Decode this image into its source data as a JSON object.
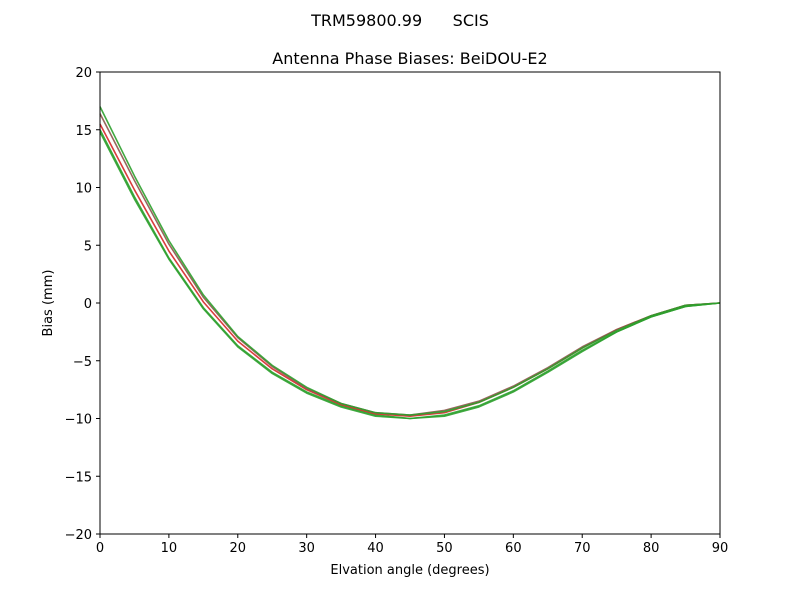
{
  "figure": {
    "suptitle": "TRM59800.99      SCIS"
  },
  "chart_data": {
    "type": "line",
    "title": "Antenna Phase Biases: BeiDOU-E2",
    "xlabel": "Elvation angle (degrees)",
    "ylabel": "Bias (mm)",
    "xlim": [
      0,
      90
    ],
    "ylim": [
      -20,
      20
    ],
    "xticks": [
      0,
      10,
      20,
      30,
      40,
      50,
      60,
      70,
      80,
      90
    ],
    "yticks": [
      -20,
      -15,
      -10,
      -5,
      0,
      5,
      10,
      15,
      20
    ],
    "xtick_labels": [
      "0",
      "10",
      "20",
      "30",
      "40",
      "50",
      "60",
      "70",
      "80",
      "90"
    ],
    "ytick_labels": [
      "−20",
      "−15",
      "−10",
      "−5",
      "0",
      "5",
      "10",
      "15",
      "20"
    ],
    "grid": false,
    "legend": "none",
    "x": [
      0,
      5,
      10,
      15,
      20,
      25,
      30,
      35,
      40,
      45,
      50,
      55,
      60,
      65,
      70,
      75,
      80,
      85,
      90
    ],
    "series": [
      {
        "color": "#2ca02c",
        "values": [
          15.0,
          9.2,
          3.9,
          -0.4,
          -3.7,
          -6.0,
          -7.7,
          -8.9,
          -9.7,
          -10.0,
          -9.7,
          -8.9,
          -7.6,
          -5.9,
          -4.1,
          -2.5,
          -1.2,
          -0.3,
          0.0
        ]
      },
      {
        "color": "#d62728",
        "values": [
          15.5,
          9.8,
          4.5,
          0.1,
          -3.3,
          -5.7,
          -7.5,
          -8.8,
          -9.6,
          -9.8,
          -9.5,
          -8.6,
          -7.3,
          -5.7,
          -3.9,
          -2.3,
          -1.1,
          -0.2,
          0.0
        ]
      },
      {
        "color": "#8c564b",
        "values": [
          16.4,
          10.6,
          5.1,
          0.5,
          -3.0,
          -5.5,
          -7.4,
          -8.7,
          -9.5,
          -9.7,
          -9.3,
          -8.5,
          -7.2,
          -5.6,
          -3.8,
          -2.3,
          -1.1,
          -0.2,
          0.0
        ]
      },
      {
        "color": "#2ca02c",
        "values": [
          17.0,
          11.0,
          5.4,
          0.7,
          -2.9,
          -5.4,
          -7.3,
          -8.7,
          -9.5,
          -9.7,
          -9.4,
          -8.6,
          -7.3,
          -5.7,
          -3.9,
          -2.4,
          -1.1,
          -0.2,
          0.0
        ]
      },
      {
        "color": "#2ca02c",
        "values": [
          14.8,
          9.0,
          3.8,
          -0.5,
          -3.8,
          -6.1,
          -7.8,
          -9.0,
          -9.8,
          -10.0,
          -9.8,
          -9.0,
          -7.7,
          -6.0,
          -4.2,
          -2.5,
          -1.2,
          -0.3,
          0.0
        ]
      }
    ]
  }
}
